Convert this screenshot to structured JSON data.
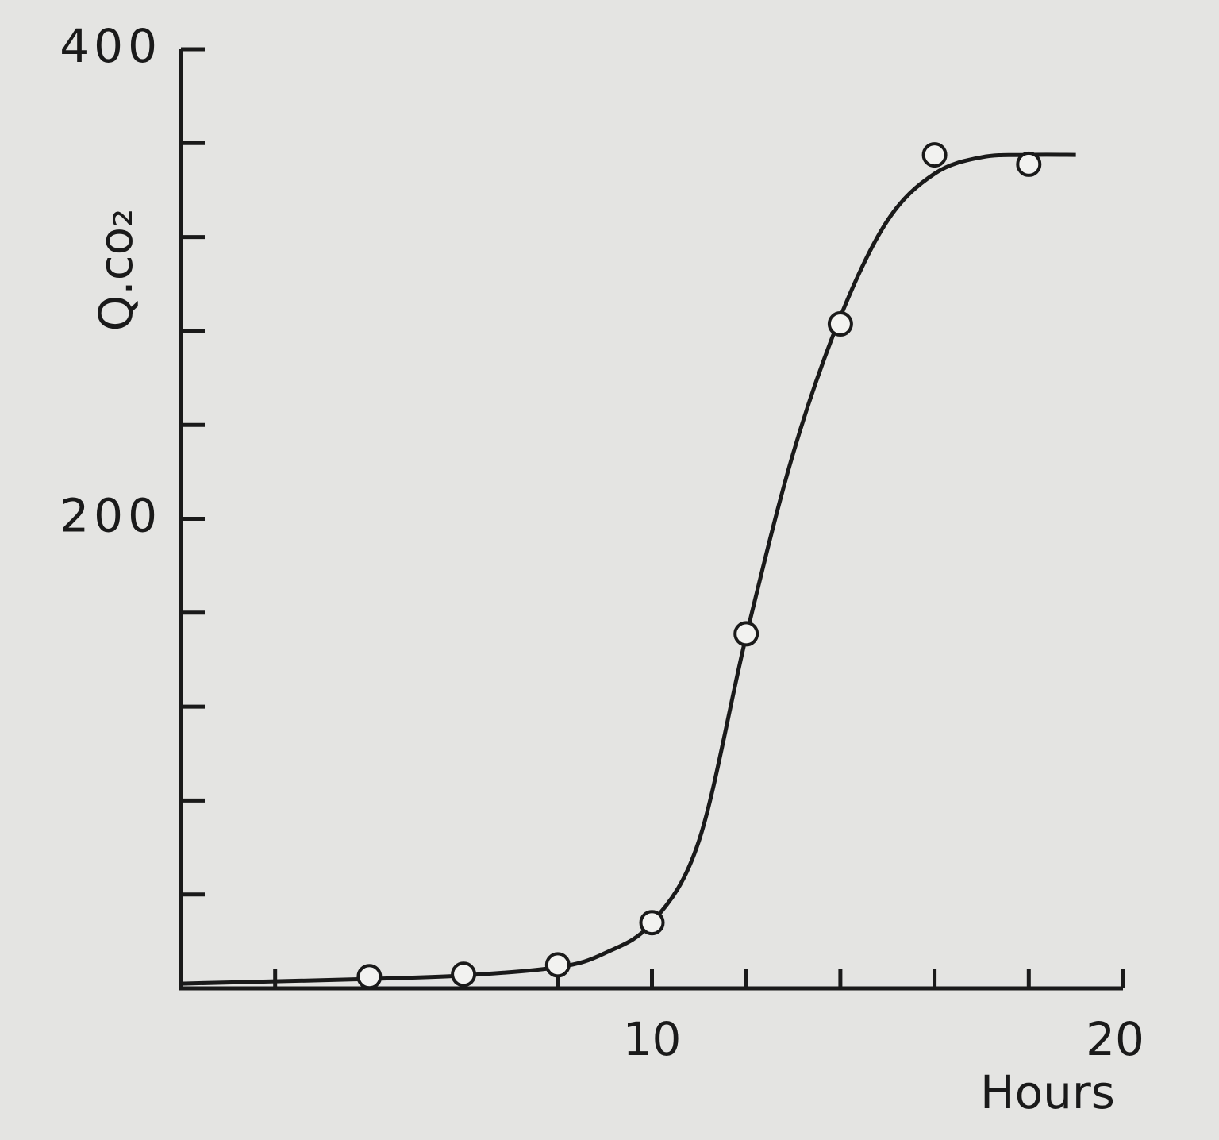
{
  "chart_data": {
    "type": "line",
    "x_label": "Hours",
    "y_label": "Q.co₂",
    "xlim": [
      0,
      20
    ],
    "ylim": [
      0,
      400
    ],
    "xticks": [
      {
        "value": 2,
        "label": null
      },
      {
        "value": 4,
        "label": null
      },
      {
        "value": 6,
        "label": null
      },
      {
        "value": 8,
        "label": null
      },
      10,
      {
        "value": 12,
        "label": null
      },
      {
        "value": 14,
        "label": null
      },
      {
        "value": 16,
        "label": null
      },
      {
        "value": 18,
        "label": null
      },
      20
    ],
    "yticks": [
      {
        "value": 40,
        "label": null
      },
      {
        "value": 80,
        "label": null
      },
      {
        "value": 120,
        "label": null
      },
      {
        "value": 160,
        "label": null
      },
      200,
      {
        "value": 240,
        "label": null
      },
      {
        "value": 280,
        "label": null
      },
      {
        "value": 320,
        "label": null
      },
      {
        "value": 360,
        "label": null
      },
      400
    ],
    "color": "#1a1a1a",
    "points": {
      "x": [
        4,
        6,
        8,
        10,
        12,
        14,
        16,
        18
      ],
      "values": [
        5,
        6,
        10,
        28,
        151,
        283,
        355,
        351
      ]
    },
    "curve": {
      "x": [
        0,
        2,
        4,
        6,
        8,
        9,
        10,
        11,
        12,
        13,
        14,
        15,
        16,
        17,
        18,
        19
      ],
      "values": [
        2,
        3,
        4,
        5.5,
        9,
        15,
        28,
        63,
        150,
        228,
        286,
        327,
        347,
        354,
        355,
        355
      ]
    }
  }
}
